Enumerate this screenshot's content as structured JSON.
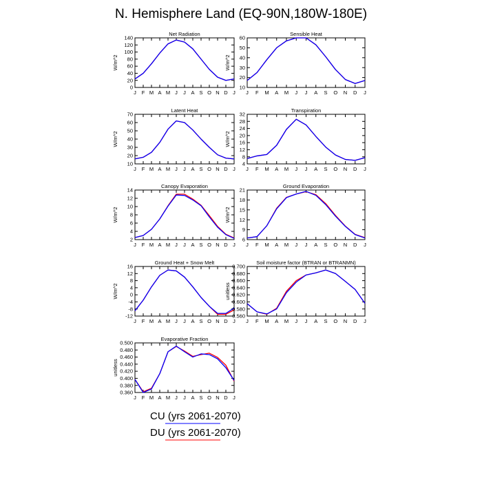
{
  "figure_title": "N. Hemisphere Land (EQ-90N,180W-180E)",
  "month_labels": [
    "J",
    "F",
    "M",
    "A",
    "M",
    "J",
    "J",
    "A",
    "S",
    "O",
    "N",
    "D",
    "J"
  ],
  "colors": {
    "cu": "#0000ff",
    "du": "#ff0000",
    "axis": "#000000"
  },
  "legend": [
    {
      "label": "CU (yrs 2061-2070)",
      "color": "#0000ff"
    },
    {
      "label": "DU (yrs 2061-2070)",
      "color": "#ff0000"
    }
  ],
  "chart_data": [
    {
      "type": "line",
      "title": "Net Radiation",
      "ylabel": "W/m^2",
      "ylim": [
        0,
        140
      ],
      "yticks": [
        0,
        20,
        40,
        60,
        80,
        100,
        120,
        140
      ],
      "ytick_labels": [
        "0",
        "20",
        "40",
        "60",
        "80",
        "100",
        "120",
        "140"
      ],
      "series": [
        {
          "name": "DU (yrs 2061-2070)",
          "values": [
            24,
            40,
            67,
            97,
            123,
            134,
            128,
            109,
            80,
            51,
            29,
            20,
            24
          ]
        },
        {
          "name": "CU (yrs 2061-2070)",
          "values": [
            24,
            40,
            67,
            97,
            123,
            134,
            128,
            109,
            80,
            51,
            29,
            20,
            24
          ]
        }
      ]
    },
    {
      "type": "line",
      "title": "Sensible Heat",
      "ylabel": "W/m^2",
      "ylim": [
        10,
        60
      ],
      "yticks": [
        10,
        20,
        30,
        40,
        50,
        60
      ],
      "ytick_labels": [
        "10",
        "20",
        "30",
        "40",
        "50",
        "60"
      ],
      "series": [
        {
          "name": "DU (yrs 2061-2070)",
          "values": [
            17,
            25,
            38,
            50,
            57,
            60,
            60,
            53,
            41,
            28,
            18,
            14,
            17
          ]
        },
        {
          "name": "CU (yrs 2061-2070)",
          "values": [
            17,
            25,
            38,
            50,
            57,
            60,
            60,
            53,
            41,
            28,
            18,
            14,
            17
          ]
        }
      ]
    },
    {
      "type": "line",
      "title": "Latent Heat",
      "ylabel": "W/m^2",
      "ylim": [
        10,
        70
      ],
      "yticks": [
        10,
        20,
        30,
        40,
        50,
        60,
        70
      ],
      "ytick_labels": [
        "10",
        "20",
        "30",
        "40",
        "50",
        "60",
        "70"
      ],
      "series": [
        {
          "name": "DU (yrs 2061-2070)",
          "values": [
            16,
            18,
            24,
            36,
            52,
            62,
            60,
            51,
            40,
            30,
            21,
            17,
            16
          ]
        },
        {
          "name": "CU (yrs 2061-2070)",
          "values": [
            16,
            18,
            24,
            36,
            52,
            62,
            60,
            51,
            40,
            30,
            21,
            17,
            16
          ]
        }
      ]
    },
    {
      "type": "line",
      "title": "Transpiration",
      "ylabel": "W/m^2",
      "ylim": [
        4,
        32
      ],
      "yticks": [
        4,
        8,
        12,
        16,
        20,
        24,
        28,
        32
      ],
      "ytick_labels": [
        "4",
        "8",
        "12",
        "16",
        "20",
        "24",
        "28",
        "32"
      ],
      "series": [
        {
          "name": "DU (yrs 2061-2070)",
          "values": [
            7,
            8.5,
            9.3,
            14.5,
            23.5,
            29.2,
            26,
            19.5,
            13.5,
            9,
            6.5,
            6,
            7.5
          ]
        },
        {
          "name": "CU (yrs 2061-2070)",
          "values": [
            7,
            8.5,
            9.3,
            14.5,
            23.5,
            29.2,
            26,
            19.5,
            13.5,
            9,
            6.5,
            6,
            7.5
          ]
        }
      ]
    },
    {
      "type": "line",
      "title": "Canopy Evaporation",
      "ylabel": "W/m^2",
      "ylim": [
        2,
        14
      ],
      "yticks": [
        2,
        4,
        6,
        8,
        10,
        12,
        14
      ],
      "ytick_labels": [
        "2",
        "4",
        "6",
        "8",
        "10",
        "12",
        "14"
      ],
      "series": [
        {
          "name": "DU (yrs 2061-2070)",
          "values": [
            2.5,
            3,
            4.5,
            7,
            10.2,
            13,
            13,
            11.8,
            10.3,
            7.8,
            5.2,
            3.3,
            2.4
          ]
        },
        {
          "name": "CU (yrs 2061-2070)",
          "values": [
            2.5,
            3,
            4.5,
            7,
            10.1,
            12.8,
            12.7,
            11.6,
            10.2,
            7.5,
            5,
            3.2,
            2.3
          ]
        }
      ]
    },
    {
      "type": "line",
      "title": "Ground Evaporation",
      "ylabel": "W/m^2",
      "ylim": [
        6,
        21
      ],
      "yticks": [
        6,
        9,
        12,
        15,
        18,
        21
      ],
      "ytick_labels": [
        "6",
        "9",
        "12",
        "15",
        "18",
        "21"
      ],
      "series": [
        {
          "name": "DU (yrs 2061-2070)",
          "values": [
            6.5,
            6.9,
            10.2,
            15.5,
            18.8,
            19.8,
            20.5,
            19.6,
            16.9,
            13.3,
            10.1,
            7.6,
            6.6
          ]
        },
        {
          "name": "CU (yrs 2061-2070)",
          "values": [
            6.5,
            6.9,
            10.2,
            15.3,
            18.7,
            19.8,
            20.6,
            19.4,
            16.6,
            13.1,
            10,
            7.5,
            6.5
          ]
        }
      ]
    },
    {
      "type": "line",
      "title": "Ground Heat + Snow Melt",
      "ylabel": "W/m^2",
      "ylim": [
        -12,
        16
      ],
      "yticks": [
        -12,
        -8,
        -4,
        0,
        4,
        8,
        12,
        16
      ],
      "ytick_labels": [
        "-12",
        "-8",
        "-4",
        "0",
        "4",
        "8",
        "12",
        "16"
      ],
      "series": [
        {
          "name": "DU (yrs 2061-2070)",
          "values": [
            -9,
            -3,
            4.5,
            11,
            14,
            13.5,
            10,
            4.5,
            -1.5,
            -6.5,
            -11,
            -11,
            -8.5
          ]
        },
        {
          "name": "CU (yrs 2061-2070)",
          "values": [
            -9,
            -3,
            4.5,
            11,
            14,
            13.5,
            10,
            4.5,
            -1.5,
            -6.5,
            -10.5,
            -10.5,
            -7.5
          ]
        }
      ]
    },
    {
      "type": "line",
      "title": "Soil moisture factor (BTRAN or BTRANMN)",
      "ylabel": "unitless",
      "ylim": [
        0.56,
        0.7
      ],
      "yticks": [
        0.56,
        0.58,
        0.6,
        0.62,
        0.64,
        0.66,
        0.68,
        0.7
      ],
      "ytick_labels": [
        "0.560",
        "0.580",
        "0.600",
        "0.620",
        "0.640",
        "0.660",
        "0.680",
        "0.700"
      ],
      "series": [
        {
          "name": "DU (yrs 2061-2070)",
          "values": [
            0.595,
            0.572,
            0.565,
            0.582,
            0.63,
            0.66,
            0.676,
            0.682,
            0.69,
            0.68,
            0.658,
            0.635,
            0.596
          ]
        },
        {
          "name": "CU (yrs 2061-2070)",
          "values": [
            0.595,
            0.572,
            0.566,
            0.58,
            0.626,
            0.656,
            0.676,
            0.682,
            0.69,
            0.68,
            0.658,
            0.635,
            0.596
          ]
        }
      ]
    },
    {
      "type": "line",
      "title": "Evaporative Fraction",
      "ylabel": "unitless",
      "ylim": [
        0.36,
        0.5
      ],
      "yticks": [
        0.36,
        0.38,
        0.4,
        0.42,
        0.44,
        0.46,
        0.48,
        0.5
      ],
      "ytick_labels": [
        "0.360",
        "0.380",
        "0.400",
        "0.420",
        "0.440",
        "0.460",
        "0.480",
        "0.500"
      ],
      "series": [
        {
          "name": "DU (yrs 2061-2070)",
          "values": [
            0.397,
            0.362,
            0.372,
            0.413,
            0.475,
            0.49,
            0.477,
            0.462,
            0.467,
            0.471,
            0.459,
            0.437,
            0.392
          ]
        },
        {
          "name": "CU (yrs 2061-2070)",
          "values": [
            0.397,
            0.36,
            0.37,
            0.413,
            0.475,
            0.491,
            0.475,
            0.46,
            0.469,
            0.467,
            0.455,
            0.43,
            0.394
          ]
        }
      ]
    }
  ]
}
